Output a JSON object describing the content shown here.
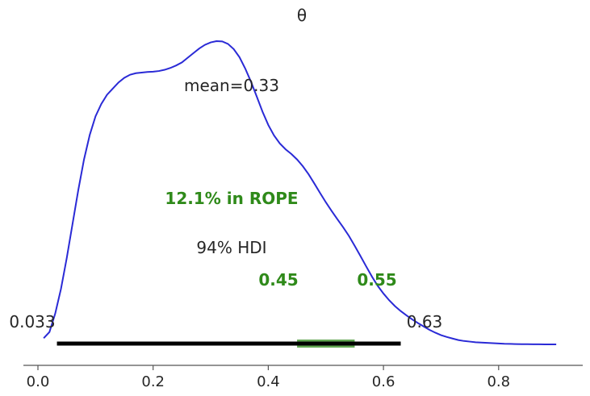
{
  "chart_data": {
    "type": "line",
    "title": "θ",
    "xlabel": "",
    "ylabel": "",
    "xlim": [
      0.0,
      0.9
    ],
    "x_ticks": [
      0.0,
      0.2,
      0.4,
      0.6,
      0.8
    ],
    "x_tick_labels": [
      "0.0",
      "0.2",
      "0.4",
      "0.6",
      "0.8"
    ],
    "grid": false,
    "series": [
      {
        "x": [
          0.01,
          0.02,
          0.03,
          0.04,
          0.05,
          0.06,
          0.07,
          0.08,
          0.09,
          0.1,
          0.11,
          0.12,
          0.13,
          0.14,
          0.15,
          0.16,
          0.17,
          0.18,
          0.19,
          0.2,
          0.21,
          0.22,
          0.23,
          0.24,
          0.25,
          0.26,
          0.27,
          0.28,
          0.29,
          0.3,
          0.31,
          0.32,
          0.33,
          0.34,
          0.35,
          0.36,
          0.37,
          0.38,
          0.39,
          0.4,
          0.41,
          0.42,
          0.43,
          0.44,
          0.45,
          0.46,
          0.47,
          0.48,
          0.49,
          0.5,
          0.51,
          0.52,
          0.53,
          0.54,
          0.55,
          0.56,
          0.57,
          0.58,
          0.59,
          0.6,
          0.61,
          0.62,
          0.63,
          0.64,
          0.65,
          0.66,
          0.67,
          0.68,
          0.69,
          0.7,
          0.71,
          0.72,
          0.73,
          0.74,
          0.75,
          0.76,
          0.77,
          0.78,
          0.79,
          0.8,
          0.81,
          0.82,
          0.83,
          0.84,
          0.85,
          0.86,
          0.87,
          0.88,
          0.89,
          0.9
        ],
        "y": [
          0.02,
          0.04,
          0.1,
          0.18,
          0.28,
          0.39,
          0.5,
          0.6,
          0.68,
          0.74,
          0.78,
          0.81,
          0.83,
          0.85,
          0.865,
          0.875,
          0.88,
          0.882,
          0.884,
          0.885,
          0.887,
          0.891,
          0.897,
          0.905,
          0.915,
          0.93,
          0.945,
          0.96,
          0.972,
          0.98,
          0.984,
          0.983,
          0.975,
          0.958,
          0.932,
          0.895,
          0.852,
          0.804,
          0.755,
          0.712,
          0.678,
          0.652,
          0.633,
          0.618,
          0.6,
          0.578,
          0.552,
          0.522,
          0.491,
          0.461,
          0.433,
          0.406,
          0.38,
          0.352,
          0.32,
          0.287,
          0.253,
          0.22,
          0.19,
          0.165,
          0.143,
          0.124,
          0.108,
          0.094,
          0.081,
          0.069,
          0.058,
          0.047,
          0.038,
          0.03,
          0.024,
          0.019,
          0.014,
          0.011,
          0.009,
          0.007,
          0.006,
          0.005,
          0.004,
          0.003,
          0.002,
          0.0015,
          0.001,
          0.0008,
          0.0005,
          0.0003,
          0.0002,
          0.0001,
          0.0001,
          0.0
        ]
      }
    ],
    "mean_label": "mean=0.33",
    "hdi": {
      "label": "94% HDI",
      "low": 0.033,
      "high": 0.63,
      "low_label": "0.033",
      "high_label": "0.63"
    },
    "rope": {
      "low": 0.45,
      "high": 0.55,
      "low_label": "0.45",
      "high_label": "0.55",
      "label": "12.1% in ROPE"
    },
    "colors": {
      "density": "#2a2ad6",
      "hdi": "#000000",
      "rope": "#2f8a1a",
      "text": "#262626",
      "axis": "#555555"
    }
  }
}
